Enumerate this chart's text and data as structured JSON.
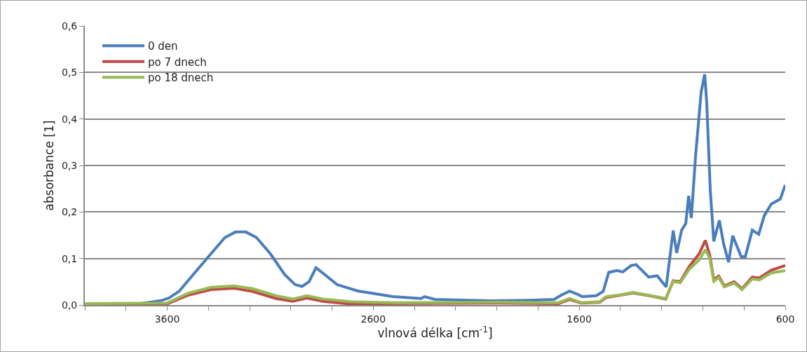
{
  "chart_data": {
    "type": "line",
    "xlabel": "vlnová délka [cm$^{-1}$]",
    "ylabel": "absorbance [1]",
    "xlim": [
      4000,
      600
    ],
    "ylim": [
      0,
      0.6
    ],
    "xticks": [
      {
        "value": 4000,
        "label": null
      },
      {
        "value": 3800,
        "label": null
      },
      3600,
      {
        "value": 3400,
        "label": null
      },
      {
        "value": 3200,
        "label": null
      },
      {
        "value": 3000,
        "label": null
      },
      {
        "value": 2800,
        "label": null
      },
      2600,
      {
        "value": 2400,
        "label": null
      },
      {
        "value": 2200,
        "label": null
      },
      {
        "value": 2000,
        "label": null
      },
      {
        "value": 1800,
        "label": null
      },
      1600,
      {
        "value": 1400,
        "label": null
      },
      {
        "value": 1200,
        "label": null
      },
      {
        "value": 1000,
        "label": null
      },
      {
        "value": 800,
        "label": null
      },
      600
    ],
    "yticks": [
      {
        "value": 0,
        "label": "0,0"
      },
      {
        "value": 0.1,
        "label": "0,1"
      },
      {
        "value": 0.2,
        "label": "0,2"
      },
      {
        "value": 0.3,
        "label": "0,3"
      },
      {
        "value": 0.4,
        "label": "0,4"
      },
      {
        "value": 0.5,
        "label": "0,5"
      },
      {
        "value": 0.6,
        "label": "0,6"
      }
    ],
    "grid": "y",
    "legend": "top left",
    "marker": "none",
    "line_style": "solid",
    "series": [
      {
        "name": "0 den",
        "color": "#4a7ebb",
        "x": [
          4000,
          3728,
          3626,
          3592,
          3541,
          3473,
          3388,
          3320,
          3269,
          3218,
          3167,
          3099,
          3031,
          2980,
          2946,
          2912,
          2878,
          2837,
          2776,
          2674,
          2504,
          2368,
          2351,
          2300,
          2028,
          1858,
          1722,
          1688,
          1647,
          1613,
          1586,
          1518,
          1484,
          1457,
          1416,
          1389,
          1348,
          1324,
          1263,
          1222,
          1178,
          1144,
          1127,
          1103,
          1083,
          1069,
          1056,
          1035,
          1008,
          991,
          981,
          964,
          947,
          920,
          899,
          875,
          855,
          814,
          794,
          760,
          729,
          702,
          668,
          624,
          600
        ],
        "values": [
          0.003,
          0.003,
          0.01,
          0.015,
          0.03,
          0.066,
          0.11,
          0.145,
          0.157,
          0.157,
          0.145,
          0.11,
          0.066,
          0.044,
          0.04,
          0.05,
          0.08,
          0.066,
          0.044,
          0.03,
          0.018,
          0.014,
          0.018,
          0.012,
          0.009,
          0.01,
          0.012,
          0.021,
          0.03,
          0.024,
          0.018,
          0.02,
          0.029,
          0.07,
          0.074,
          0.071,
          0.085,
          0.087,
          0.06,
          0.063,
          0.039,
          0.16,
          0.112,
          0.161,
          0.175,
          0.235,
          0.187,
          0.323,
          0.459,
          0.496,
          0.433,
          0.247,
          0.137,
          0.182,
          0.131,
          0.092,
          0.149,
          0.104,
          0.104,
          0.161,
          0.152,
          0.192,
          0.217,
          0.228,
          0.258
        ]
      },
      {
        "name": "po 7 dnech",
        "color": "#be4b48",
        "x": [
          4000,
          3602,
          3500,
          3388,
          3276,
          3184,
          3072,
          2990,
          2922,
          2844,
          2708,
          2500,
          2000,
          1700,
          1647,
          1590,
          1500,
          1470,
          1400,
          1340,
          1250,
          1180,
          1144,
          1110,
          1066,
          1018,
          988,
          967,
          947,
          923,
          896,
          848,
          810,
          760,
          726,
          668,
          600
        ],
        "values": [
          0.002,
          0.002,
          0.021,
          0.033,
          0.036,
          0.029,
          0.014,
          0.008,
          0.015,
          0.008,
          0.002,
          0.003,
          0.004,
          0.003,
          0.012,
          0.004,
          0.006,
          0.016,
          0.021,
          0.026,
          0.019,
          0.013,
          0.052,
          0.05,
          0.083,
          0.11,
          0.139,
          0.108,
          0.055,
          0.062,
          0.041,
          0.05,
          0.035,
          0.06,
          0.058,
          0.075,
          0.085
        ]
      },
      {
        "name": "po 18 dnech",
        "color": "#98b954",
        "x": [
          4000,
          3602,
          3500,
          3388,
          3276,
          3184,
          3072,
          2990,
          2922,
          2844,
          2708,
          2500,
          2000,
          1700,
          1647,
          1590,
          1500,
          1470,
          1400,
          1340,
          1250,
          1180,
          1144,
          1110,
          1066,
          1018,
          988,
          967,
          947,
          923,
          896,
          848,
          810,
          760,
          726,
          668,
          600
        ],
        "values": [
          0.003,
          0.004,
          0.025,
          0.038,
          0.041,
          0.035,
          0.02,
          0.013,
          0.02,
          0.013,
          0.007,
          0.005,
          0.006,
          0.005,
          0.014,
          0.005,
          0.007,
          0.018,
          0.022,
          0.027,
          0.02,
          0.014,
          0.051,
          0.048,
          0.077,
          0.097,
          0.119,
          0.101,
          0.051,
          0.059,
          0.039,
          0.047,
          0.033,
          0.056,
          0.054,
          0.069,
          0.074
        ]
      }
    ]
  }
}
